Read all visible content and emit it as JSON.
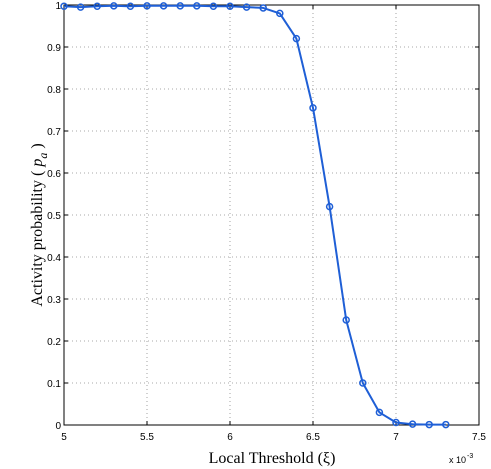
{
  "chart_data": {
    "type": "line",
    "title": "",
    "xlabel": "Local Threshold (ξ)",
    "ylabel_prefix": "Activity probability ( ",
    "ylabel_symbol": "p",
    "ylabel_subscript": "a",
    "ylabel_suffix": " )",
    "x_multiplier_base": "x 10",
    "x_multiplier_exponent": "-3",
    "xlim": [
      5,
      7.5
    ],
    "ylim": [
      0,
      1
    ],
    "grid": true,
    "legend": "none",
    "x_ticks": [
      5,
      5.5,
      6,
      6.5,
      7,
      7.5
    ],
    "x_tick_labels": [
      "5",
      "5.5",
      "6",
      "6.5",
      "7",
      "7.5"
    ],
    "y_ticks": [
      0,
      0.1,
      0.2,
      0.3,
      0.4,
      0.5,
      0.6,
      0.7,
      0.8,
      0.9,
      1
    ],
    "y_tick_labels": [
      "0",
      "0.1",
      "0.2",
      "0.3",
      "0.4",
      "0.5",
      "0.6",
      "0.7",
      "0.8",
      "0.9",
      "1"
    ],
    "line_color": "#1f5fd6",
    "series": [
      {
        "x": [
          5.0,
          5.1,
          5.2,
          5.3,
          5.4,
          5.5,
          5.6,
          5.7,
          5.8,
          5.9,
          6.0,
          6.1,
          6.2,
          6.3,
          6.4,
          6.5,
          6.6,
          6.7,
          6.8,
          6.9,
          7.0,
          7.1,
          7.2,
          7.3
        ],
        "y": [
          0.997,
          0.995,
          0.997,
          0.998,
          0.997,
          0.998,
          0.998,
          0.998,
          0.998,
          0.997,
          0.997,
          0.995,
          0.993,
          0.98,
          0.92,
          0.755,
          0.52,
          0.25,
          0.1,
          0.03,
          0.006,
          0.002,
          0.001,
          0.001
        ]
      }
    ]
  }
}
